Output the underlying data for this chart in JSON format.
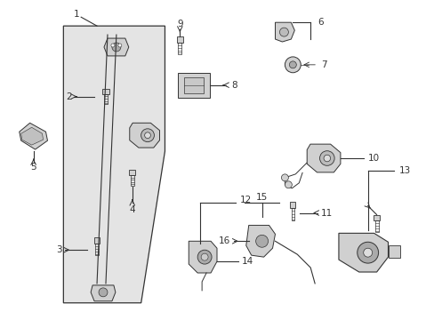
{
  "bg_color": "#ffffff",
  "line_color": "#333333",
  "gray_fill": "#d0d0d0",
  "light_gray": "#e8e8e8",
  "fig_width": 4.89,
  "fig_height": 3.6,
  "dpi": 100,
  "font_size": 7.5
}
